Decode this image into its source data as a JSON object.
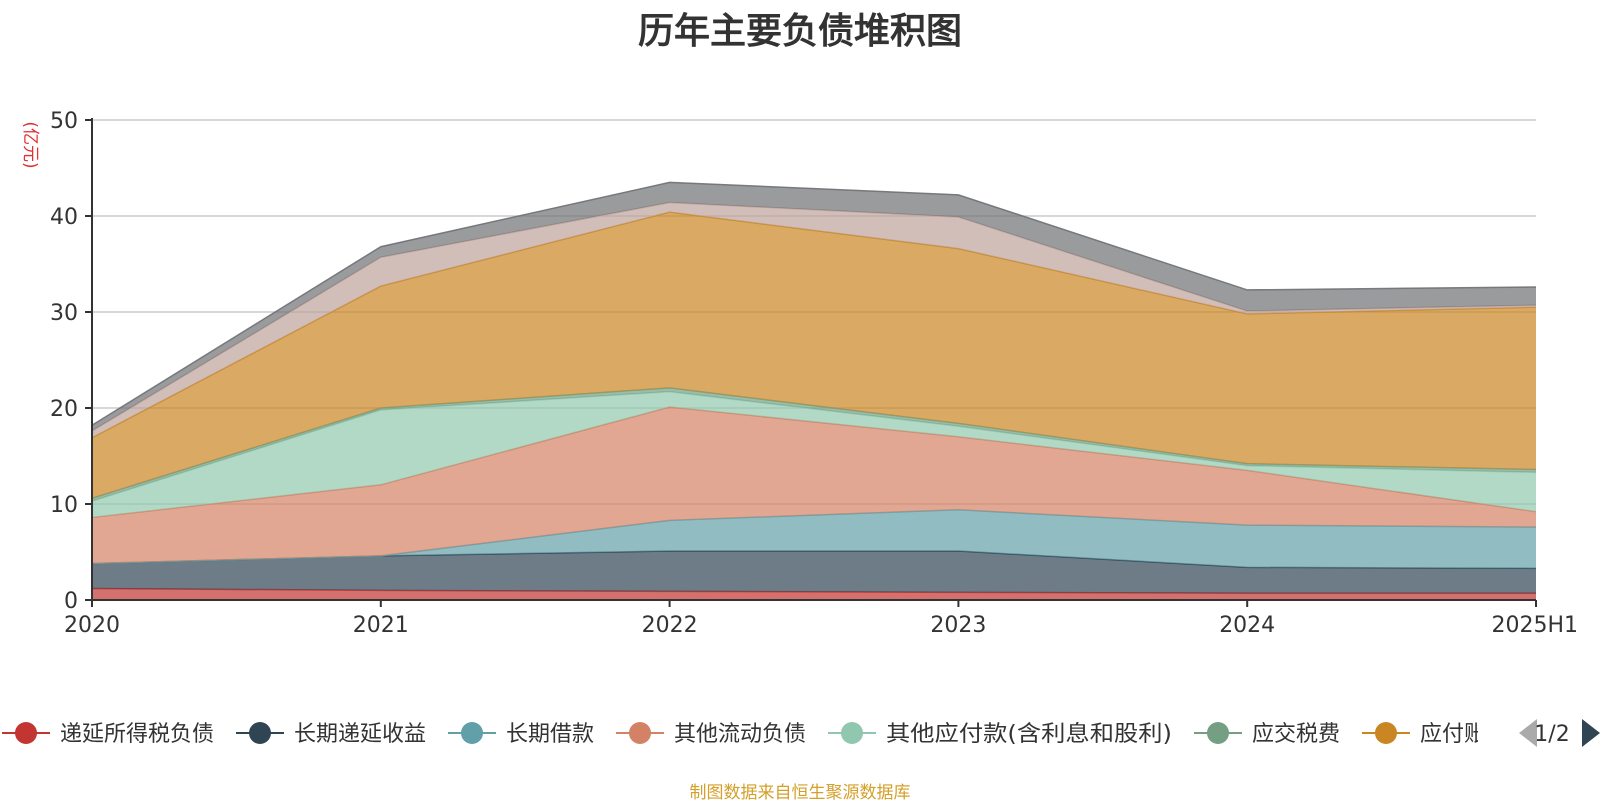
{
  "chart_data": {
    "type": "area",
    "stacked": true,
    "title": "历年主要负债堆积图",
    "unit_label": "(亿元)",
    "categories": [
      "2020",
      "2021",
      "2022",
      "2023",
      "2024",
      "2025H1"
    ],
    "ylim": [
      0,
      50
    ],
    "yticks": [
      0,
      10,
      20,
      30,
      40,
      50
    ],
    "grid": true,
    "legend_position": "bottom",
    "series": [
      {
        "name": "递延所得税负债",
        "color": "#c23531",
        "values": [
          1.2,
          1.0,
          0.9,
          0.8,
          0.7,
          0.7
        ]
      },
      {
        "name": "长期递延收益",
        "color": "#2f4554",
        "values": [
          2.6,
          3.6,
          4.2,
          4.3,
          2.7,
          2.6
        ]
      },
      {
        "name": "长期借款",
        "color": "#61a0a8",
        "values": [
          0,
          0,
          3.2,
          4.3,
          4.4,
          4.3
        ]
      },
      {
        "name": "其他流动负债",
        "color": "#d48265",
        "values": [
          4.8,
          7.4,
          11.8,
          7.6,
          5.7,
          1.6
        ]
      },
      {
        "name": "其他应付款(含利息和股利)",
        "color": "#91c7ae",
        "values": [
          1.7,
          7.8,
          1.6,
          1.1,
          0.5,
          4.1
        ]
      },
      {
        "name": "应交税费",
        "color": "#749f83",
        "values": [
          0.3,
          0.2,
          0.4,
          0.3,
          0.2,
          0.3
        ]
      },
      {
        "name": "应付账款",
        "color": "#ca8622",
        "values": [
          6.3,
          12.7,
          18.3,
          18.2,
          15.6,
          16.9
        ]
      },
      {
        "name": "",
        "color": "#bda29a",
        "values": [
          0.7,
          3.0,
          1.0,
          3.3,
          0.3,
          0.2
        ]
      },
      {
        "name": "",
        "color": "#6e7074",
        "values": [
          0.6,
          1.1,
          2.1,
          2.3,
          2.2,
          1.9
        ]
      }
    ],
    "legend_visible": [
      "递延所得税负债",
      "长期递延收益",
      "长期借款",
      "其他流动负债",
      "其他应付款(含利息和股利)",
      "应交税费",
      "应付账款"
    ],
    "legend_truncated_text": "应",
    "legend_page": "1/2"
  },
  "footer_note": "制图数据来自恒生聚源数据库"
}
